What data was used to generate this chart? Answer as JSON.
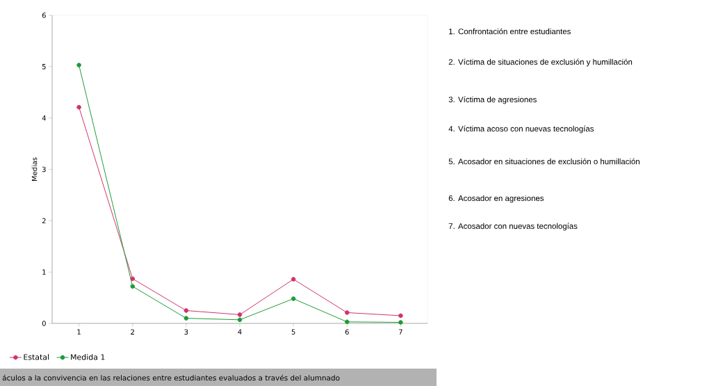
{
  "chart_data": {
    "type": "line",
    "ylabel": "Medias",
    "categories": [
      "1",
      "2",
      "3",
      "4",
      "5",
      "6",
      "7"
    ],
    "series": [
      {
        "name": "Estatal",
        "color": "#d0336a",
        "values": [
          4.21,
          0.87,
          0.25,
          0.17,
          0.86,
          0.21,
          0.15
        ]
      },
      {
        "name": "Medida 1",
        "color": "#1f9a3a",
        "values": [
          5.03,
          0.72,
          0.1,
          0.07,
          0.48,
          0.03,
          0.02
        ]
      }
    ],
    "ylim": [
      0,
      6
    ],
    "yticks": [
      0,
      1,
      2,
      3,
      4,
      5,
      6
    ],
    "grid": false,
    "legend": "bottom left",
    "marker": "circle",
    "line_style": "solid",
    "annotations": [
      "1. Confrontación entre estudiantes",
      "2. Víctima de situaciones de exclusión y humillación",
      "3. Víctima de agresiones",
      "4. Víctima acoso con nuevas tecnologías",
      "5. Acosador en situaciones de exclusión o humillación",
      "6. Acosador en agresiones",
      "7. Acosador con nuevas tecnologías",
      "áculos a la convivencia en las relaciones entre estudiantes evaluados a través del alumnado"
    ]
  }
}
